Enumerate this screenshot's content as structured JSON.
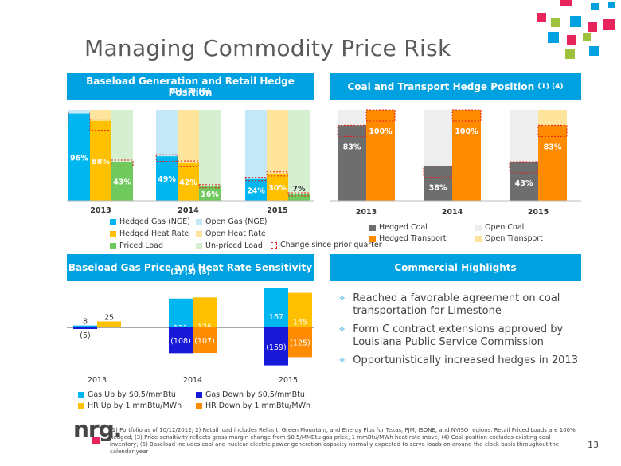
{
  "title": "Managing Commodity Price Risk",
  "page_number": "13",
  "logo_text": "nrg.",
  "colors": {
    "header_blue": "#00a1e0",
    "gas": "#00b6f0",
    "gas_open": "#c4e8f7",
    "heat": "#ffc000",
    "heat_open": "#ffe49b",
    "priced": "#70c95c",
    "unpriced": "#d6efd0",
    "coal": "#6e6e6e",
    "coal_open": "#eeeeee",
    "transport": "#ff8c00",
    "transport_open": "#ffe49b",
    "gas_down": "#1818d8",
    "change_box": "#e41c1c"
  },
  "panels": {
    "baseload": {
      "title": "Baseload Generation and Retail Hedge Position",
      "refs": "(1) (2) (5)"
    },
    "coal": {
      "title": "Coal and Transport Hedge Position",
      "refs": "(1) (4)"
    },
    "sensitivity": {
      "title": "Baseload Gas Price and Heat Rate Sensitivity",
      "refs": "(1) (3) (5)"
    },
    "highlights": {
      "title": "Commercial Highlights"
    }
  },
  "legend_baseload": [
    "Hedged Gas (NGE)",
    "Open Gas (NGE)",
    "Hedged Heat Rate",
    "Open Heat Rate",
    "Priced Load",
    "Un-priced Load"
  ],
  "legend_change": "Change since prior quarter",
  "legend_coal": [
    "Hedged Coal",
    "Open Coal",
    "Hedged Transport",
    "Open Transport"
  ],
  "legend_sens": [
    "Gas Up by $0.5/mmBtu",
    "Gas Down by $0.5/mmBtu",
    "HR Up by 1 mmBtu/MWh",
    "HR Down by 1 mmBtu/MWh"
  ],
  "highlights": [
    "Reached a favorable agreement on coal transportation for Limestone",
    "Form C contract extensions approved by Louisiana Public Service Commission",
    "Opportunistically increased hedges in 2013"
  ],
  "footnote": "(1) Portfolio as of 10/12/2012; 2) Retail load includes Reliant, Green Mountain, and Energy Plus for Texas, PJM, ISONE, and NYISO regions. Retail Priced Loads are 100% hedged; (3) Price sensitivity reflects gross margin change from $0.5/MMBtu gas price, 1 mmBtu/MWh heat rate move; (4) Coal position excludes existing coal inventory; (5) Baseload includes coal and nuclear electric power generation capacity normally expected to serve loads on around-the-clock basis throughout the calendar year",
  "chart_data": [
    {
      "type": "bar",
      "title": "Baseload Generation and Retail Hedge Position",
      "categories": [
        "2013",
        "2014",
        "2015"
      ],
      "ylim": [
        0,
        100
      ],
      "series": [
        {
          "name": "Hedged Gas (NGE)",
          "values": [
            96,
            49,
            24
          ],
          "labels": [
            "96%",
            "49%",
            "24%"
          ]
        },
        {
          "name": "Hedged Heat Rate",
          "values": [
            88,
            42,
            30
          ],
          "labels": [
            "88%",
            "42%",
            "30%"
          ]
        },
        {
          "name": "Priced Load",
          "values": [
            43,
            16,
            7
          ],
          "labels": [
            "43%",
            "16%",
            "7%"
          ]
        }
      ]
    },
    {
      "type": "bar",
      "title": "Coal and Transport Hedge Position",
      "categories": [
        "2013",
        "2014",
        "2015"
      ],
      "ylim": [
        0,
        100
      ],
      "series": [
        {
          "name": "Hedged Coal",
          "values": [
            83,
            38,
            43
          ],
          "labels": [
            "83%",
            "38%",
            "43%"
          ]
        },
        {
          "name": "Hedged Transport",
          "values": [
            100,
            100,
            83
          ],
          "labels": [
            "100%",
            "100%",
            "83%"
          ]
        }
      ]
    },
    {
      "type": "bar",
      "title": "Baseload Gas Price and Heat Rate Sensitivity",
      "categories": [
        "2013",
        "2014",
        "2015"
      ],
      "series": [
        {
          "name": "Gas Up by $0.5/mmBtu",
          "values": [
            8,
            121,
            167
          ],
          "labels": [
            "8",
            "121",
            "167"
          ]
        },
        {
          "name": "Gas Down by $0.5/mmBtu",
          "values": [
            -5,
            -108,
            -159
          ],
          "labels": [
            "(5)",
            "(108)",
            "(159)"
          ]
        },
        {
          "name": "HR Up by 1 mmBtu/MWh",
          "values": [
            25,
            126,
            145
          ],
          "labels": [
            "25",
            "126",
            "145"
          ]
        },
        {
          "name": "HR Down by 1 mmBtu/MWh",
          "values": [
            0,
            -107,
            -125
          ],
          "labels": [
            "",
            "(107)",
            "(125)"
          ]
        }
      ]
    }
  ]
}
